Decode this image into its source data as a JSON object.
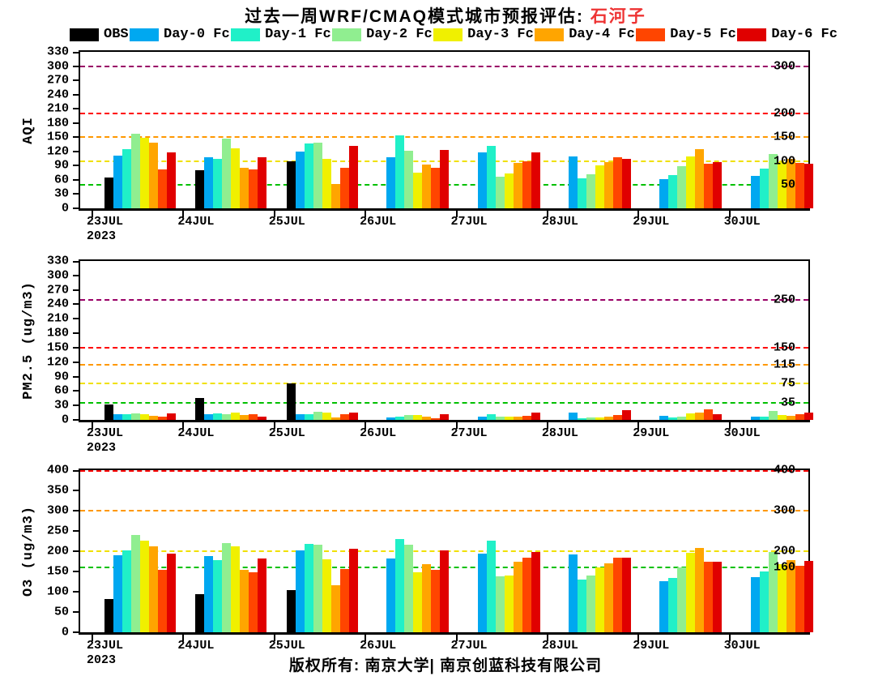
{
  "title": {
    "main": "过去一周WRF/CMAQ模式城市预报评估: ",
    "city": "石河子",
    "city_color": "#ee3333"
  },
  "legend": {
    "items": [
      {
        "label": "OBS",
        "color": "#000000"
      },
      {
        "label": "Day-0 Fc",
        "color": "#00a8f0"
      },
      {
        "label": "Day-1 Fc",
        "color": "#20f0c8"
      },
      {
        "label": "Day-2 Fc",
        "color": "#90ee90"
      },
      {
        "label": "Day-3 Fc",
        "color": "#f0f000"
      },
      {
        "label": "Day-4 Fc",
        "color": "#ffa500"
      },
      {
        "label": "Day-5 Fc",
        "color": "#ff4500"
      },
      {
        "label": "Day-6 Fc",
        "color": "#e00000"
      }
    ]
  },
  "footer": {
    "copyright": "版权所有: 南京大学| 南京创蓝科技有限公司"
  },
  "chart_data": [
    {
      "type": "bar",
      "ylabel": "AQI",
      "categories": [
        "23JUL",
        "24JUL",
        "25JUL",
        "26JUL",
        "27JUL",
        "28JUL",
        "29JUL",
        "30JUL"
      ],
      "year_sublabel": "2023",
      "ylim": [
        0,
        330
      ],
      "ytick_step": 30,
      "grid": false,
      "legend_position": "top",
      "thresholds": [
        {
          "value": 50,
          "color": "#00c000",
          "label": "50"
        },
        {
          "value": 100,
          "color": "#f0e000",
          "label": "100"
        },
        {
          "value": 150,
          "color": "#ff9800",
          "label": "150"
        },
        {
          "value": 200,
          "color": "#ff0000",
          "label": "200"
        },
        {
          "value": 300,
          "color": "#990066",
          "label": "300"
        }
      ],
      "series": [
        {
          "name": "OBS",
          "color": "#000000",
          "values": [
            65,
            80,
            100,
            null,
            null,
            null,
            null,
            null
          ]
        },
        {
          "name": "Day-0 Fc",
          "color": "#00a8f0",
          "values": [
            112,
            107,
            120,
            108,
            118,
            109,
            61,
            68
          ]
        },
        {
          "name": "Day-1 Fc",
          "color": "#20f0c8",
          "values": [
            124,
            105,
            137,
            154,
            132,
            63,
            70,
            84
          ]
        },
        {
          "name": "Day-2 Fc",
          "color": "#90ee90",
          "values": [
            158,
            147,
            139,
            121,
            67,
            72,
            89,
            114
          ]
        },
        {
          "name": "Day-3 Fc",
          "color": "#f0f000",
          "values": [
            148,
            127,
            105,
            75,
            73,
            91,
            110,
            98
          ]
        },
        {
          "name": "Day-4 Fc",
          "color": "#ffa500",
          "values": [
            138,
            85,
            52,
            92,
            96,
            97,
            124,
            105
          ]
        },
        {
          "name": "Day-5 Fc",
          "color": "#ff4500",
          "values": [
            82,
            82,
            85,
            86,
            100,
            107,
            94,
            95
          ]
        },
        {
          "name": "Day-6 Fc",
          "color": "#e00000",
          "values": [
            118,
            108,
            132,
            123,
            118,
            104,
            98,
            94
          ]
        }
      ]
    },
    {
      "type": "bar",
      "ylabel": "PM2.5 (ug/m3)",
      "categories": [
        "23JUL",
        "24JUL",
        "25JUL",
        "26JUL",
        "27JUL",
        "28JUL",
        "29JUL",
        "30JUL"
      ],
      "year_sublabel": "2023",
      "ylim": [
        0,
        330
      ],
      "ytick_step": 30,
      "grid": false,
      "legend_position": "top",
      "thresholds": [
        {
          "value": 35,
          "color": "#00c000",
          "label": "35"
        },
        {
          "value": 75,
          "color": "#f0e000",
          "label": "75"
        },
        {
          "value": 115,
          "color": "#ff9800",
          "label": "115"
        },
        {
          "value": 150,
          "color": "#ff0000",
          "label": "150"
        },
        {
          "value": 250,
          "color": "#990066",
          "label": "250"
        }
      ],
      "series": [
        {
          "name": "OBS",
          "color": "#000000",
          "values": [
            32,
            45,
            76,
            null,
            null,
            null,
            null,
            null
          ]
        },
        {
          "name": "Day-0 Fc",
          "color": "#00a8f0",
          "values": [
            11,
            11,
            12,
            5,
            6,
            15,
            9,
            7
          ]
        },
        {
          "name": "Day-1 Fc",
          "color": "#20f0c8",
          "values": [
            11,
            13,
            12,
            7,
            11,
            4,
            5,
            7
          ]
        },
        {
          "name": "Day-2 Fc",
          "color": "#90ee90",
          "values": [
            14,
            11,
            17,
            10,
            7,
            5,
            6,
            19
          ]
        },
        {
          "name": "Day-3 Fc",
          "color": "#f0f000",
          "values": [
            11,
            15,
            15,
            10,
            6,
            5,
            13,
            10
          ]
        },
        {
          "name": "Day-4 Fc",
          "color": "#ffa500",
          "values": [
            9,
            10,
            5,
            7,
            7,
            6,
            16,
            9
          ]
        },
        {
          "name": "Day-5 Fc",
          "color": "#ff4500",
          "values": [
            7,
            12,
            11,
            4,
            9,
            10,
            22,
            12
          ]
        },
        {
          "name": "Day-6 Fc",
          "color": "#e00000",
          "values": [
            13,
            6,
            15,
            11,
            15,
            20,
            12,
            16
          ]
        }
      ]
    },
    {
      "type": "bar",
      "ylabel": "O3 (ug/m3)",
      "categories": [
        "23JUL",
        "24JUL",
        "25JUL",
        "26JUL",
        "27JUL",
        "28JUL",
        "29JUL",
        "30JUL"
      ],
      "year_sublabel": "2023",
      "ylim": [
        0,
        400
      ],
      "ytick_step": 50,
      "grid": false,
      "legend_position": "top",
      "thresholds": [
        {
          "value": 160,
          "color": "#00c000",
          "label": "160"
        },
        {
          "value": 200,
          "color": "#f0e000",
          "label": "200"
        },
        {
          "value": 300,
          "color": "#ff9800",
          "label": "300"
        },
        {
          "value": 400,
          "color": "#ff0000",
          "label": "400"
        }
      ],
      "series": [
        {
          "name": "OBS",
          "color": "#000000",
          "values": [
            83,
            95,
            105,
            null,
            null,
            null,
            null,
            null
          ]
        },
        {
          "name": "Day-0 Fc",
          "color": "#00a8f0",
          "values": [
            190,
            189,
            202,
            183,
            195,
            193,
            127,
            136
          ]
        },
        {
          "name": "Day-1 Fc",
          "color": "#20f0c8",
          "values": [
            203,
            178,
            218,
            231,
            227,
            131,
            135,
            151
          ]
        },
        {
          "name": "Day-2 Fc",
          "color": "#90ee90",
          "values": [
            241,
            221,
            217,
            216,
            139,
            141,
            160,
            198
          ]
        },
        {
          "name": "Day-3 Fc",
          "color": "#f0f000",
          "values": [
            226,
            213,
            181,
            148,
            140,
            160,
            196,
            168
          ]
        },
        {
          "name": "Day-4 Fc",
          "color": "#ffa500",
          "values": [
            213,
            155,
            117,
            168,
            175,
            170,
            208,
            179
          ]
        },
        {
          "name": "Day-5 Fc",
          "color": "#ff4500",
          "values": [
            154,
            149,
            157,
            155,
            185,
            184,
            174,
            164
          ]
        },
        {
          "name": "Day-6 Fc",
          "color": "#e00000",
          "values": [
            195,
            183,
            206,
            202,
            198,
            184,
            174,
            176
          ]
        }
      ]
    }
  ]
}
